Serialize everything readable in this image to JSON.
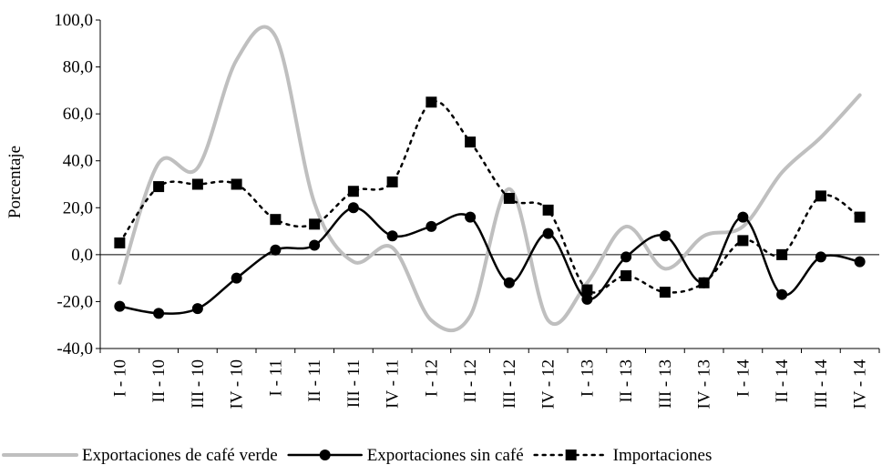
{
  "chart_data": {
    "type": "line",
    "y_label": "Porcentaje",
    "categories": [
      "I - 10",
      "II - 10",
      "III - 10",
      "IV - 10",
      "I - 11",
      "II - 11",
      "III - 11",
      "IV - 11",
      "I - 12",
      "II - 12",
      "III - 12",
      "IV - 12",
      "I - 13",
      "II - 13",
      "III - 13",
      "IV - 13",
      "I - 14",
      "II - 14",
      "III - 14",
      "IV - 14"
    ],
    "series": [
      {
        "name": "Exportaciones de café verde",
        "color": "#bfbfbf",
        "marker": "none",
        "dash": "solid",
        "values": [
          -12,
          39,
          37,
          83,
          93,
          22,
          -3,
          3,
          -28,
          -26,
          28,
          -28,
          -12,
          12,
          -6,
          8,
          12,
          35,
          50,
          68
        ]
      },
      {
        "name": "Exportaciones sin café",
        "color": "#000000",
        "marker": "circle",
        "dash": "solid",
        "values": [
          -22,
          -25,
          -23,
          -10,
          2,
          4,
          20,
          8,
          12,
          16,
          -12,
          9,
          -19,
          -1,
          8,
          -12,
          16,
          -17,
          -1,
          -3
        ]
      },
      {
        "name": "Importaciones",
        "color": "#000000",
        "marker": "square",
        "dash": "dotted",
        "values": [
          5,
          29,
          30,
          30,
          15,
          13,
          27,
          31,
          65,
          48,
          24,
          19,
          -15,
          -9,
          -16,
          -12,
          6,
          0,
          25,
          16
        ]
      }
    ],
    "ylim": [
      -40,
      100
    ],
    "yticks": [
      {
        "value": -40,
        "label": "-40,0"
      },
      {
        "value": -20,
        "label": "-20,0"
      },
      {
        "value": 0,
        "label": "0,0"
      },
      {
        "value": 20,
        "label": "20,0"
      },
      {
        "value": 40,
        "label": "40,0"
      },
      {
        "value": 60,
        "label": "60,0"
      },
      {
        "value": 80,
        "label": "80,0"
      },
      {
        "value": 100,
        "label": "100,0"
      }
    ],
    "smooth": true,
    "grid": false,
    "legend": "bottom"
  }
}
